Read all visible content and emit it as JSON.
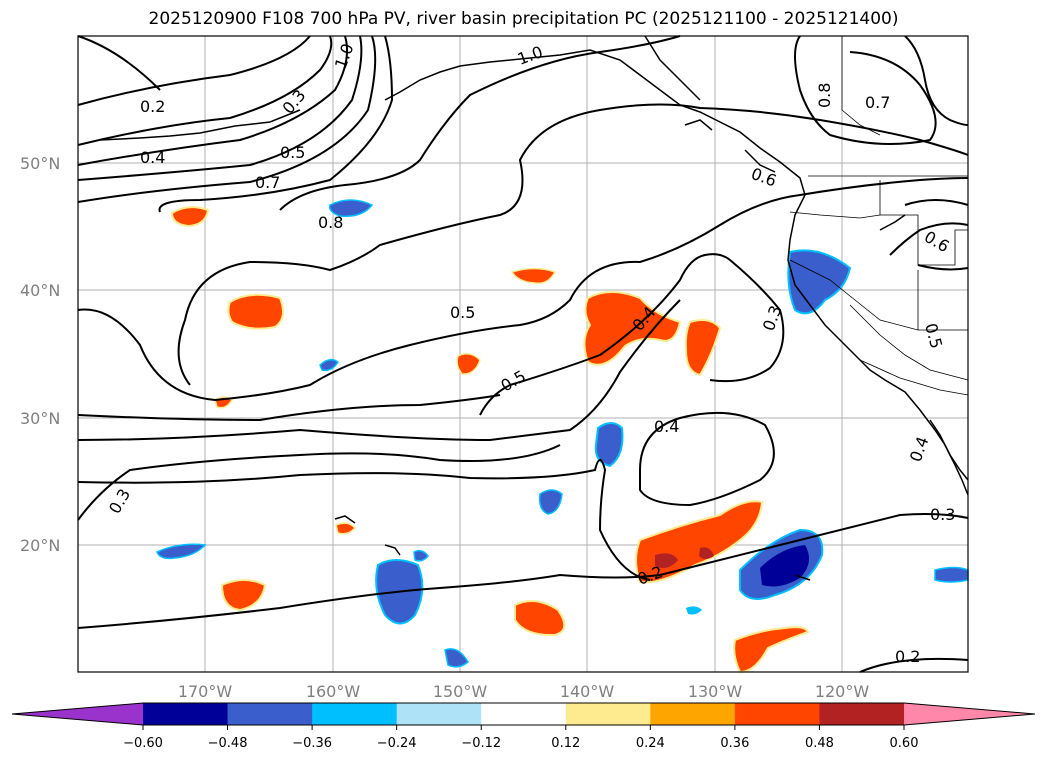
{
  "title": "2025120900 F108 700 hPa PV, river basin precipitation PC (2025121100 - 2025121400)",
  "latitude_labels": [
    "50°N",
    "40°N",
    "30°N",
    "20°N"
  ],
  "longitude_labels": [
    "170°W",
    "160°W",
    "150°W",
    "140°W",
    "130°W",
    "120°W"
  ],
  "contour_labels": [
    "0.2",
    "0.3",
    "0.4",
    "0.5",
    "0.7",
    "0.8",
    "1.0",
    "0.8",
    "0.7",
    "1.0",
    "0.6",
    "0.6",
    "0.5",
    "0.5",
    "0.5",
    "0.4",
    "0.3",
    "0.4",
    "0.4",
    "0.3",
    "0.3",
    "0.2",
    "0.2"
  ],
  "colorbar": {
    "tick_labels": [
      "−0.60",
      "−0.48",
      "−0.36",
      "−0.24",
      "−0.12",
      "0.12",
      "0.24",
      "0.36",
      "0.48",
      "0.60"
    ],
    "colors": [
      "#9933cc",
      "#000099",
      "#3a5fcd",
      "#00bfff",
      "#aee3f7",
      "#ffffff",
      "#ffeb8f",
      "#ffa500",
      "#ff4500",
      "#b22222",
      "#ff88aa"
    ]
  }
}
